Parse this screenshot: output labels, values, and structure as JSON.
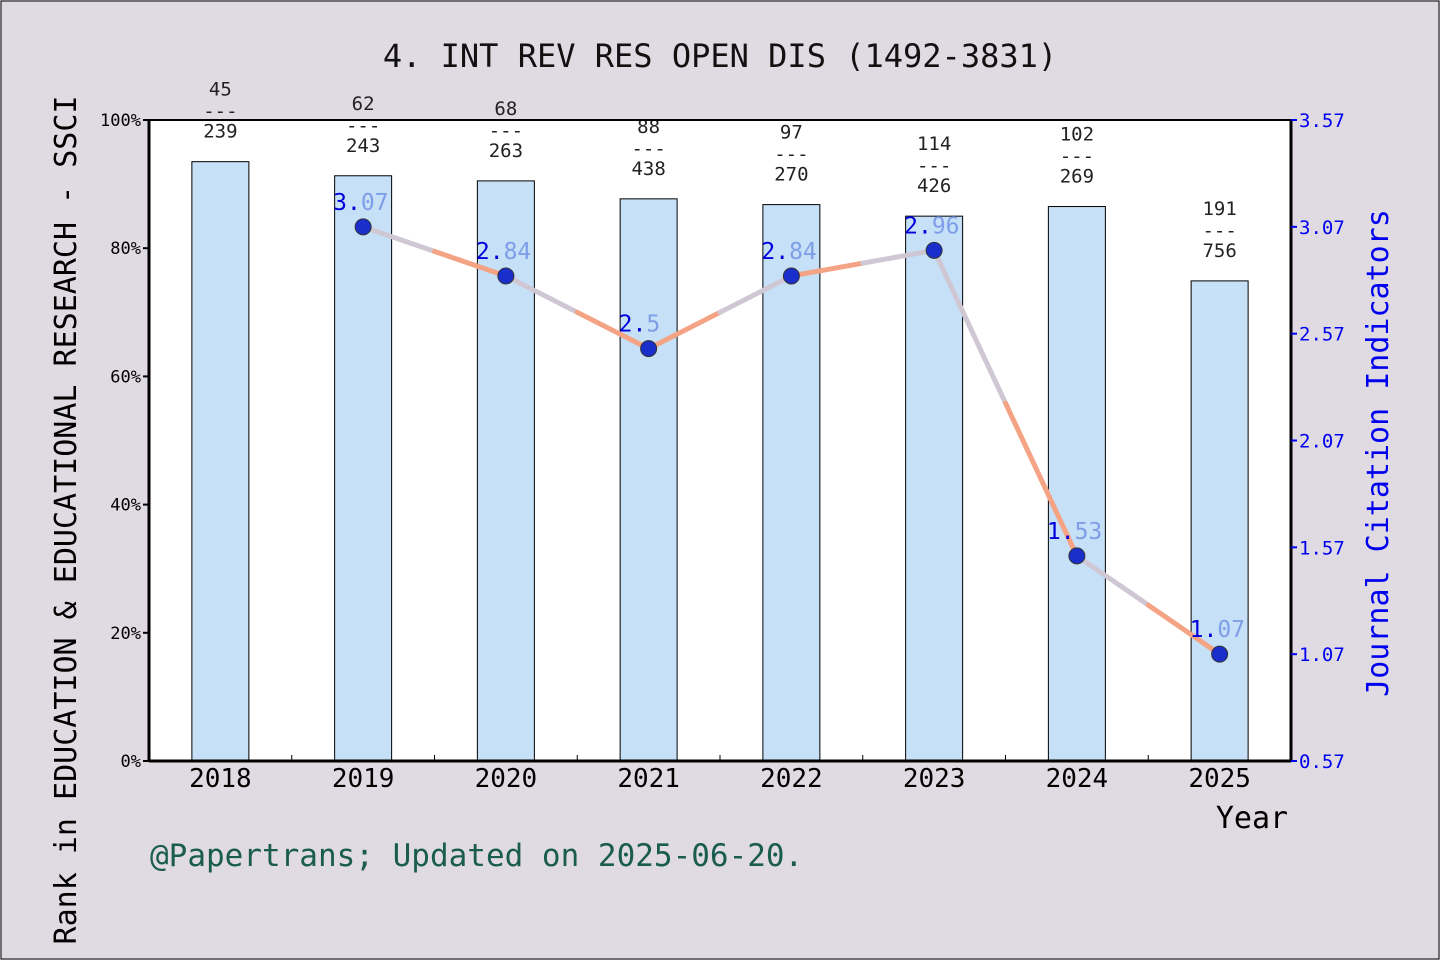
{
  "chart_data": {
    "type": "bar",
    "title": "4. INT REV RES OPEN DIS (1492-3831)",
    "xlabel": "Year",
    "ylabel_left": "Rank in EDUCATION & EDUCATIONAL RESEARCH - SSCI",
    "ylabel_right": "Journal Citation Indicators",
    "footer": "@Papertrans; Updated on 2025-06-20.",
    "categories": [
      "2018",
      "2019",
      "2020",
      "2021",
      "2022",
      "2023",
      "2024",
      "2025"
    ],
    "y_left": {
      "min": 0,
      "max": 100,
      "ticks": [
        0,
        20,
        40,
        60,
        80,
        100
      ],
      "tick_labels": [
        "0%",
        "20%",
        "40%",
        "60%",
        "80%",
        "100%"
      ]
    },
    "y_right": {
      "min": 0.57,
      "max": 3.57,
      "ticks": [
        0.57,
        1.07,
        1.57,
        2.07,
        2.57,
        3.07,
        3.57
      ],
      "tick_labels": [
        "0.57",
        "1.07",
        "1.57",
        "2.07",
        "2.57",
        "3.07",
        "3.57"
      ]
    },
    "rank_bars": {
      "values_percent": [
        93.5,
        91.3,
        90.5,
        87.7,
        86.8,
        85.0,
        86.5,
        74.9
      ],
      "rank": [
        "45",
        "62",
        "68",
        "88",
        "97",
        "114",
        "102",
        "191"
      ],
      "total": [
        "239",
        "243",
        "263",
        "438",
        "270",
        "426",
        "269",
        "756"
      ],
      "separator": "---",
      "color": "#c5e0f7"
    },
    "jci_line": {
      "x": [
        "2019",
        "2020",
        "2021",
        "2022",
        "2023",
        "2024",
        "2025"
      ],
      "values": [
        3.07,
        2.84,
        2.5,
        2.84,
        2.96,
        1.53,
        1.07
      ],
      "labels": [
        [
          "3.",
          "07"
        ],
        [
          "2.",
          "84"
        ],
        [
          "2.",
          "5"
        ],
        [
          "2.",
          "84"
        ],
        [
          "2.",
          "96"
        ],
        [
          "1.",
          "53"
        ],
        [
          "1.",
          "07"
        ]
      ],
      "color_up": "#f4a384",
      "color_down": "#cfc8d4",
      "marker_color": "#1a2ecc"
    }
  }
}
